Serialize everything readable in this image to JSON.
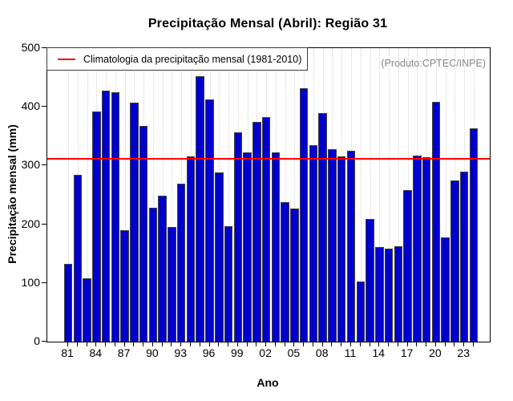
{
  "window": {
    "title": "Precipitação Mensal (Abril): Região 31"
  },
  "note": "(Produto:CPTEC/INPE)",
  "chart_data": {
    "type": "bar",
    "title": "Precipitação Mensal (Abril): Região 31",
    "xlabel": "Ano",
    "ylabel": "Precipitação mensal (mm)",
    "ylim": [
      0,
      500
    ],
    "y_ticks": [
      0,
      100,
      200,
      300,
      400,
      500
    ],
    "grid": "vertical-dotted",
    "legend_position": "top-left",
    "annotation": "(Produto:CPTEC/INPE)",
    "bar_color": "#0000cd",
    "bar_border_color": "#404040",
    "categories": [
      1981,
      1982,
      1983,
      1984,
      1985,
      1986,
      1987,
      1988,
      1989,
      1990,
      1991,
      1992,
      1993,
      1994,
      1995,
      1996,
      1997,
      1998,
      1999,
      2000,
      2001,
      2002,
      2003,
      2004,
      2005,
      2006,
      2007,
      2008,
      2009,
      2010,
      2011,
      2012,
      2013,
      2014,
      2015,
      2016,
      2017,
      2018,
      2019,
      2020,
      2021,
      2022,
      2023,
      2024
    ],
    "values": [
      133,
      284,
      108,
      392,
      427,
      425,
      190,
      407,
      368,
      228,
      248,
      196,
      269,
      316,
      452,
      412,
      288,
      197,
      356,
      322,
      374,
      383,
      323,
      238,
      227,
      432,
      335,
      390,
      328,
      316,
      325,
      102,
      209,
      161,
      159,
      163,
      258,
      317,
      314,
      409,
      178,
      274,
      289,
      364
    ],
    "x_tick_labels": [
      "81",
      "84",
      "87",
      "90",
      "93",
      "96",
      "99",
      "02",
      "05",
      "08",
      "11",
      "14",
      "17",
      "20",
      "23"
    ],
    "x_tick_label_step": 3,
    "reference_line": {
      "label": "Climatologia da precipitação mensal (1981-2010)",
      "value": 311,
      "color": "#ff0000"
    }
  }
}
